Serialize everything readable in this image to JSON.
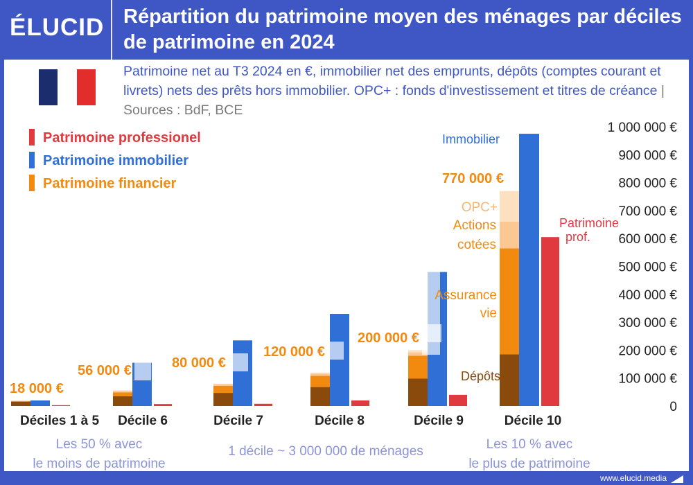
{
  "brand": {
    "logo": "ÉLUCID",
    "website": "www.elucid.media"
  },
  "header": {
    "title": "Répartition du patrimoine moyen des ménages par déciles de patrimoine en 2024"
  },
  "subtitle": {
    "text": "Patrimoine net au T3 2024 en €, immobilier net des emprunts, dépôts (comptes courant et livrets) nets des prêts hors immobilier. OPC+ : fonds d'investissement et titres de créance",
    "separator": "|",
    "sources": "Sources : BdF, BCE"
  },
  "colors": {
    "professionnel": "#e0393e",
    "immobilier": "#2f6fd6",
    "financier": "#f28a10",
    "depots": "#8a4a0c",
    "actions": "#fbc894",
    "opc": "#fde0c0",
    "brand": "#3f57c4",
    "label_blue": "#8b93d9"
  },
  "chart_data": {
    "type": "bar",
    "ylim": [
      0,
      1000000
    ],
    "y_ticks": [
      "0",
      "100 000 €",
      "200 000 €",
      "300 000 €",
      "400 000 €",
      "500 000 €",
      "600 000 €",
      "700 000 €",
      "800 000 €",
      "900 000 €",
      "1 000 000 €"
    ],
    "categories": [
      "Déciles 1 à 5",
      "Décile 6",
      "Décile 7",
      "Décile 8",
      "Décile 9",
      "Décile 10"
    ],
    "legend": [
      "Patrimoine professionel",
      "Patrimoine immobilier",
      "Patrimoine financier"
    ],
    "series": {
      "depots": [
        15000,
        35000,
        47000,
        68000,
        98000,
        185000
      ],
      "assurance_vie": [
        3000,
        14000,
        25000,
        40000,
        82000,
        380000
      ],
      "actions_cotees": [
        0,
        5000,
        6000,
        8000,
        12000,
        95000
      ],
      "opc": [
        0,
        2000,
        2000,
        4000,
        8000,
        110000
      ],
      "immobilier": [
        20000,
        155000,
        235000,
        330000,
        480000,
        975000
      ],
      "professionnel": [
        3000,
        7000,
        8000,
        20000,
        40000,
        605000
      ]
    },
    "financial_totals": [
      "18 000 €",
      "56 000 €",
      "80 000 €",
      "120 000 €",
      "200 000 €",
      "770 000 €"
    ],
    "annotations": {
      "immobilier": "Immobilier",
      "opc": "OPC+",
      "actions_line1": "Actions",
      "actions_line2": "cotées",
      "assurance_line1": "Assurance",
      "assurance_line2": "vie",
      "depots": "Dépôts",
      "pro_line1": "Patrimoine",
      "pro_line2": "prof."
    },
    "notes": {
      "bottom_left_line1": "Les 50 % avec",
      "bottom_left_line2": "le moins de patrimoine",
      "bottom_center": "1 décile ~ 3 000 000 de ménages",
      "bottom_right_line1": "Les 10 % avec",
      "bottom_right_line2": "le plus de patrimoine"
    }
  }
}
